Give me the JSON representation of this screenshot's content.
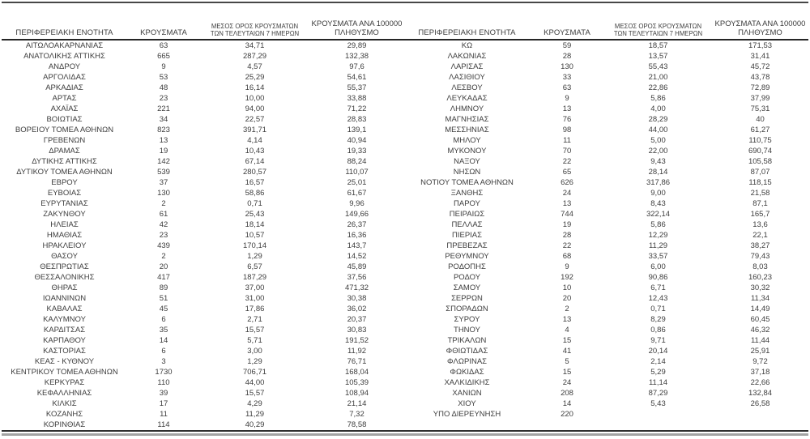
{
  "table": {
    "headers": {
      "region": "ΠΕΡΙΦΕΡΕΙΑΚΗ ΕΝΟΤΗΤΑ",
      "cases": "ΚΡΟΥΣΜΑΤΑ",
      "avg7_line1": "ΜΕΣΟΣ ΟΡΟΣ ΚΡΟΥΣΜΑΤΩΝ",
      "avg7_line2": "ΤΩΝ ΤΕΛΕΥΤΑΙΩΝ 7 ΗΜΕΡΩΝ",
      "per100k_line1": "ΚΡΟΥΣΜΑΤΑ ΑΝΑ 100000",
      "per100k_line2": "ΠΛΗΘΥΣΜΟ"
    },
    "left_rows": [
      [
        "ΑΙΤΩΛΟΑΚΑΡΝΑΝΙΑΣ",
        "63",
        "34,71",
        "29,89"
      ],
      [
        "ΑΝΑΤΟΛΙΚΗΣ ΑΤΤΙΚΗΣ",
        "665",
        "287,29",
        "132,38"
      ],
      [
        "ΑΝΔΡΟΥ",
        "9",
        "4,57",
        "97,6"
      ],
      [
        "ΑΡΓΟΛΙΔΑΣ",
        "53",
        "25,29",
        "54,61"
      ],
      [
        "ΑΡΚΑΔΙΑΣ",
        "48",
        "16,14",
        "55,37"
      ],
      [
        "ΑΡΤΑΣ",
        "23",
        "10,00",
        "33,88"
      ],
      [
        "ΑΧΑΪΑΣ",
        "221",
        "94,00",
        "71,22"
      ],
      [
        "ΒΟΙΩΤΙΑΣ",
        "34",
        "22,57",
        "28,83"
      ],
      [
        "ΒΟΡΕΙΟΥ ΤΟΜΕΑ ΑΘΗΝΩΝ",
        "823",
        "391,71",
        "139,1"
      ],
      [
        "ΓΡΕΒΕΝΩΝ",
        "13",
        "4,14",
        "40,94"
      ],
      [
        "ΔΡΑΜΑΣ",
        "19",
        "10,43",
        "19,33"
      ],
      [
        "ΔΥΤΙΚΗΣ ΑΤΤΙΚΗΣ",
        "142",
        "67,14",
        "88,24"
      ],
      [
        "ΔΥΤΙΚΟΥ ΤΟΜΕΑ ΑΘΗΝΩΝ",
        "539",
        "280,57",
        "110,07"
      ],
      [
        "ΕΒΡΟΥ",
        "37",
        "16,57",
        "25,01"
      ],
      [
        "ΕΥΒΟΙΑΣ",
        "130",
        "58,86",
        "61,67"
      ],
      [
        "ΕΥΡΥΤΑΝΙΑΣ",
        "2",
        "0,71",
        "9,96"
      ],
      [
        "ΖΑΚΥΝΘΟΥ",
        "61",
        "25,43",
        "149,66"
      ],
      [
        "ΗΛΕΙΑΣ",
        "42",
        "18,14",
        "26,37"
      ],
      [
        "ΗΜΑΘΙΑΣ",
        "23",
        "10,57",
        "16,36"
      ],
      [
        "ΗΡΑΚΛΕΙΟΥ",
        "439",
        "170,14",
        "143,7"
      ],
      [
        "ΘΑΣΟΥ",
        "2",
        "1,29",
        "14,52"
      ],
      [
        "ΘΕΣΠΡΩΤΙΑΣ",
        "20",
        "6,57",
        "45,89"
      ],
      [
        "ΘΕΣΣΑΛΟΝΙΚΗΣ",
        "417",
        "187,29",
        "37,56"
      ],
      [
        "ΘΗΡΑΣ",
        "89",
        "37,00",
        "471,32"
      ],
      [
        "ΙΩΑΝΝΙΝΩΝ",
        "51",
        "31,00",
        "30,38"
      ],
      [
        "ΚΑΒΑΛΑΣ",
        "45",
        "17,86",
        "36,02"
      ],
      [
        "ΚΑΛΥΜΝΟΥ",
        "6",
        "2,71",
        "20,37"
      ],
      [
        "ΚΑΡΔΙΤΣΑΣ",
        "35",
        "15,57",
        "30,83"
      ],
      [
        "ΚΑΡΠΑΘΟΥ",
        "14",
        "5,71",
        "191,52"
      ],
      [
        "ΚΑΣΤΟΡΙΑΣ",
        "6",
        "3,00",
        "11,92"
      ],
      [
        "ΚΕΑΣ - ΚΥΘΝΟΥ",
        "3",
        "1,29",
        "76,71"
      ],
      [
        "ΚΕΝΤΡΙΚΟΥ ΤΟΜΕΑ ΑΘΗΝΩΝ",
        "1730",
        "706,71",
        "168,04"
      ],
      [
        "ΚΕΡΚΥΡΑΣ",
        "110",
        "44,00",
        "105,39"
      ],
      [
        "ΚΕΦΑΛΛΗΝΙΑΣ",
        "39",
        "15,57",
        "108,94"
      ],
      [
        "ΚΙΛΚΙΣ",
        "17",
        "4,29",
        "21,14"
      ],
      [
        "ΚΟΖΑΝΗΣ",
        "11",
        "11,29",
        "7,32"
      ],
      [
        "ΚΟΡΙΝΘΙΑΣ",
        "114",
        "40,29",
        "78,58"
      ]
    ],
    "right_rows": [
      [
        "ΚΩ",
        "59",
        "18,57",
        "171,53"
      ],
      [
        "ΛΑΚΩΝΙΑΣ",
        "28",
        "13,57",
        "31,41"
      ],
      [
        "ΛΑΡΙΣΑΣ",
        "130",
        "55,43",
        "45,72"
      ],
      [
        "ΛΑΣΙΘΙΟΥ",
        "33",
        "21,00",
        "43,78"
      ],
      [
        "ΛΕΣΒΟΥ",
        "63",
        "22,86",
        "72,89"
      ],
      [
        "ΛΕΥΚΑΔΑΣ",
        "9",
        "5,86",
        "37,99"
      ],
      [
        "ΛΗΜΝΟΥ",
        "13",
        "4,00",
        "75,31"
      ],
      [
        "ΜΑΓΝΗΣΙΑΣ",
        "76",
        "28,29",
        "40"
      ],
      [
        "ΜΕΣΣΗΝΙΑΣ",
        "98",
        "44,00",
        "61,27"
      ],
      [
        "ΜΗΛΟΥ",
        "11",
        "5,00",
        "110,75"
      ],
      [
        "ΜΥΚΟΝΟΥ",
        "70",
        "22,00",
        "690,74"
      ],
      [
        "ΝΑΞΟΥ",
        "22",
        "9,43",
        "105,58"
      ],
      [
        "ΝΗΣΩΝ",
        "65",
        "28,14",
        "87,07"
      ],
      [
        "ΝΟΤΙΟΥ ΤΟΜΕΑ ΑΘΗΝΩΝ",
        "626",
        "317,86",
        "118,15"
      ],
      [
        "ΞΑΝΘΗΣ",
        "24",
        "9,00",
        "21,58"
      ],
      [
        "ΠΑΡΟΥ",
        "13",
        "8,43",
        "87,1"
      ],
      [
        "ΠΕΙΡΑΙΩΣ",
        "744",
        "322,14",
        "165,7"
      ],
      [
        "ΠΕΛΛΑΣ",
        "19",
        "5,86",
        "13,6"
      ],
      [
        "ΠΙΕΡΙΑΣ",
        "28",
        "12,29",
        "22,1"
      ],
      [
        "ΠΡΕΒΕΖΑΣ",
        "22",
        "11,29",
        "38,27"
      ],
      [
        "ΡΕΘΥΜΝΟΥ",
        "68",
        "33,57",
        "79,43"
      ],
      [
        "ΡΟΔΟΠΗΣ",
        "9",
        "6,00",
        "8,03"
      ],
      [
        "ΡΟΔΟΥ",
        "192",
        "90,86",
        "160,23"
      ],
      [
        "ΣΑΜΟΥ",
        "10",
        "6,71",
        "30,32"
      ],
      [
        "ΣΕΡΡΩΝ",
        "20",
        "12,43",
        "11,34"
      ],
      [
        "ΣΠΟΡΑΔΩΝ",
        "2",
        "0,71",
        "14,49"
      ],
      [
        "ΣΥΡΟΥ",
        "13",
        "8,29",
        "60,45"
      ],
      [
        "ΤΗΝΟΥ",
        "4",
        "0,86",
        "46,32"
      ],
      [
        "ΤΡΙΚΑΛΩΝ",
        "15",
        "9,71",
        "11,44"
      ],
      [
        "ΦΘΙΩΤΙΔΑΣ",
        "41",
        "20,14",
        "25,91"
      ],
      [
        "ΦΛΩΡΙΝΑΣ",
        "5",
        "2,14",
        "9,72"
      ],
      [
        "ΦΩΚΙΔΑΣ",
        "15",
        "5,29",
        "37,18"
      ],
      [
        "ΧΑΛΚΙΔΙΚΗΣ",
        "24",
        "11,14",
        "22,66"
      ],
      [
        "ΧΑΝΙΩΝ",
        "208",
        "87,29",
        "132,84"
      ],
      [
        "ΧΙΟΥ",
        "14",
        "5,43",
        "26,58"
      ],
      [
        "ΥΠΟ ΔΙΕΡΕΥΝΗΣΗ",
        "220",
        "",
        ""
      ]
    ],
    "colors": {
      "text": "#3d3d3d",
      "rule_top": "#474747",
      "rule_header": "#262626",
      "rule_bottom_dark": "#2f2f2f",
      "rule_bottom_gray": "#a3a3a3"
    }
  }
}
